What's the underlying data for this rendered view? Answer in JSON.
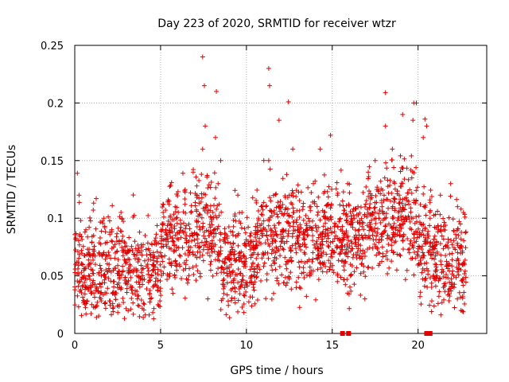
{
  "chart_data": {
    "type": "scatter",
    "title": "Day 223 of 2020, SRMTID for receiver wtzr",
    "xlabel": "GPS time / hours",
    "ylabel": "SRMTID / TECUs",
    "xlim": [
      0,
      24
    ],
    "ylim": [
      0,
      0.25
    ],
    "x_ticks": [
      0,
      5,
      10,
      15,
      20
    ],
    "x_tick_labels": [
      "0",
      "5",
      "10",
      "15",
      "20"
    ],
    "y_ticks": [
      0,
      0.05,
      0.1,
      0.15,
      0.2,
      0.25
    ],
    "y_tick_labels": [
      "0",
      "0.05",
      "0.1",
      "0.15",
      "0.2",
      "0.25"
    ],
    "grid": true,
    "marker": "plus",
    "series_color": "#e00000",
    "zero_markers_x": [
      15.6,
      15.95,
      20.5,
      20.7
    ],
    "series": [
      {
        "name": "SRMTID",
        "x": [
          0.05,
          0.15,
          0.25,
          0.35,
          0.45,
          0.55,
          0.65,
          0.8,
          0.95,
          1.1,
          1.25,
          1.4,
          1.55,
          1.7,
          1.85,
          2.0,
          2.15,
          2.3,
          2.45,
          2.6,
          2.75,
          2.9,
          3.05,
          3.2,
          3.35,
          3.5,
          3.65,
          3.8,
          3.95,
          4.1,
          4.25,
          4.4,
          4.55,
          4.7,
          4.85,
          5.0,
          5.15,
          5.3,
          5.5,
          5.7,
          5.9,
          6.1,
          6.3,
          6.5,
          6.7,
          6.9,
          7.1,
          7.3,
          7.45,
          7.6,
          7.75,
          7.9,
          8.05,
          8.2,
          8.35,
          8.5,
          8.7,
          8.9,
          9.1,
          9.3,
          9.5,
          9.7,
          9.9,
          10.1,
          10.3,
          10.5,
          10.7,
          10.9,
          11.1,
          11.3,
          11.5,
          11.7,
          11.9,
          12.1,
          12.3,
          12.5,
          12.7,
          12.9,
          13.1,
          13.3,
          13.5,
          13.7,
          13.9,
          14.1,
          14.3,
          14.5,
          14.7,
          14.9,
          15.1,
          15.3,
          15.5,
          15.7,
          15.9,
          16.1,
          16.3,
          16.5,
          16.7,
          16.9,
          17.1,
          17.3,
          17.5,
          17.7,
          17.9,
          18.1,
          18.3,
          18.5,
          18.7,
          18.9,
          19.1,
          19.3,
          19.5,
          19.7,
          19.9,
          20.1,
          20.3,
          20.5,
          20.7,
          20.9,
          21.1,
          21.3,
          21.5,
          21.7,
          21.9,
          22.1,
          22.3,
          22.5,
          22.7,
          7.45,
          7.55,
          8.25,
          11.3,
          11.35,
          12.45,
          18.1,
          19.75,
          20.4
        ],
        "y": [
          0.06,
          0.139,
          0.12,
          0.098,
          0.06,
          0.05,
          0.09,
          0.07,
          0.04,
          0.085,
          0.117,
          0.07,
          0.05,
          0.1,
          0.035,
          0.06,
          0.09,
          0.045,
          0.08,
          0.05,
          0.1,
          0.013,
          0.07,
          0.055,
          0.04,
          0.08,
          0.03,
          0.07,
          0.05,
          0.085,
          0.06,
          0.03,
          0.066,
          0.045,
          0.025,
          0.07,
          0.105,
          0.09,
          0.112,
          0.08,
          0.1,
          0.06,
          0.139,
          0.085,
          0.07,
          0.14,
          0.12,
          0.09,
          0.16,
          0.18,
          0.03,
          0.06,
          0.105,
          0.17,
          0.13,
          0.15,
          0.08,
          0.05,
          0.07,
          0.065,
          0.12,
          0.045,
          0.06,
          0.08,
          0.05,
          0.075,
          0.1,
          0.11,
          0.07,
          0.15,
          0.055,
          0.08,
          0.185,
          0.09,
          0.06,
          0.12,
          0.16,
          0.07,
          0.04,
          0.11,
          0.09,
          0.05,
          0.13,
          0.08,
          0.16,
          0.06,
          0.1,
          0.172,
          0.07,
          0.12,
          0.09,
          0.055,
          0.13,
          0.08,
          0.1,
          0.11,
          0.06,
          0.03,
          0.14,
          0.09,
          0.15,
          0.07,
          0.11,
          0.18,
          0.095,
          0.16,
          0.08,
          0.12,
          0.19,
          0.1,
          0.07,
          0.185,
          0.2,
          0.06,
          0.17,
          0.18,
          0.1,
          0.07,
          0.05,
          0.12,
          0.09,
          0.06,
          0.13,
          0.04,
          0.11,
          0.02,
          0.06,
          0.24,
          0.215,
          0.21,
          0.23,
          0.215,
          0.201,
          0.209,
          0.2,
          0.186
        ]
      }
    ]
  }
}
